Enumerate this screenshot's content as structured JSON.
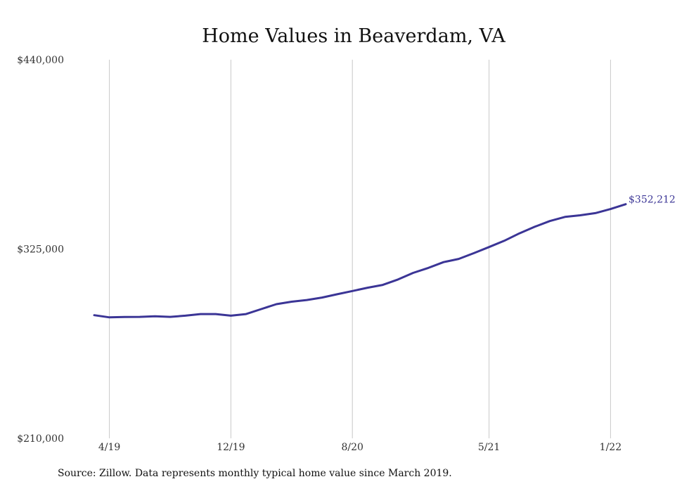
{
  "chart_data": {
    "type": "line",
    "title": "Home Values in Beaverdam, VA",
    "xlabel": "",
    "ylabel": "",
    "ylim": [
      210000,
      440000
    ],
    "y_ticks": [
      {
        "value": 440000,
        "label": "$440,000"
      },
      {
        "value": 325000,
        "label": "$325,000"
      },
      {
        "value": 210000,
        "label": "$210,000"
      }
    ],
    "x_ticks": [
      {
        "month": 1,
        "label": "4/19"
      },
      {
        "month": 9,
        "label": "12/19"
      },
      {
        "month": 17,
        "label": "8/20"
      },
      {
        "month": 26,
        "label": "5/21"
      },
      {
        "month": 34,
        "label": "1/22"
      }
    ],
    "grid": "vertical lines at x ticks",
    "line_color": "#3b3596",
    "series": [
      {
        "months": [
          "3/19",
          "4/19",
          "5/19",
          "6/19",
          "7/19",
          "8/19",
          "9/19",
          "10/19",
          "11/19",
          "12/19",
          "1/20",
          "2/20",
          "3/20",
          "4/20",
          "5/20",
          "6/20",
          "7/20",
          "8/20",
          "9/20",
          "10/20",
          "11/20",
          "12/20",
          "1/21",
          "2/21",
          "3/21",
          "4/21",
          "5/21",
          "6/21",
          "7/21",
          "8/21",
          "9/21",
          "10/21",
          "11/21",
          "12/21",
          "1/22",
          "2/22",
          "3/22"
        ],
        "values": [
          284800,
          283500,
          283700,
          283800,
          284100,
          283800,
          284500,
          285500,
          285500,
          284500,
          285500,
          288500,
          291500,
          293000,
          294000,
          295500,
          297500,
          299500,
          301500,
          303200,
          306500,
          310500,
          313500,
          317000,
          319000,
          322500,
          326200,
          330000,
          334500,
          338500,
          342000,
          344500,
          345500,
          346800,
          349300,
          352212,
          352212
        ]
      }
    ],
    "end_label": "$352,212",
    "source": "Source: Zillow. Data represents monthly typical home value since March 2019."
  }
}
